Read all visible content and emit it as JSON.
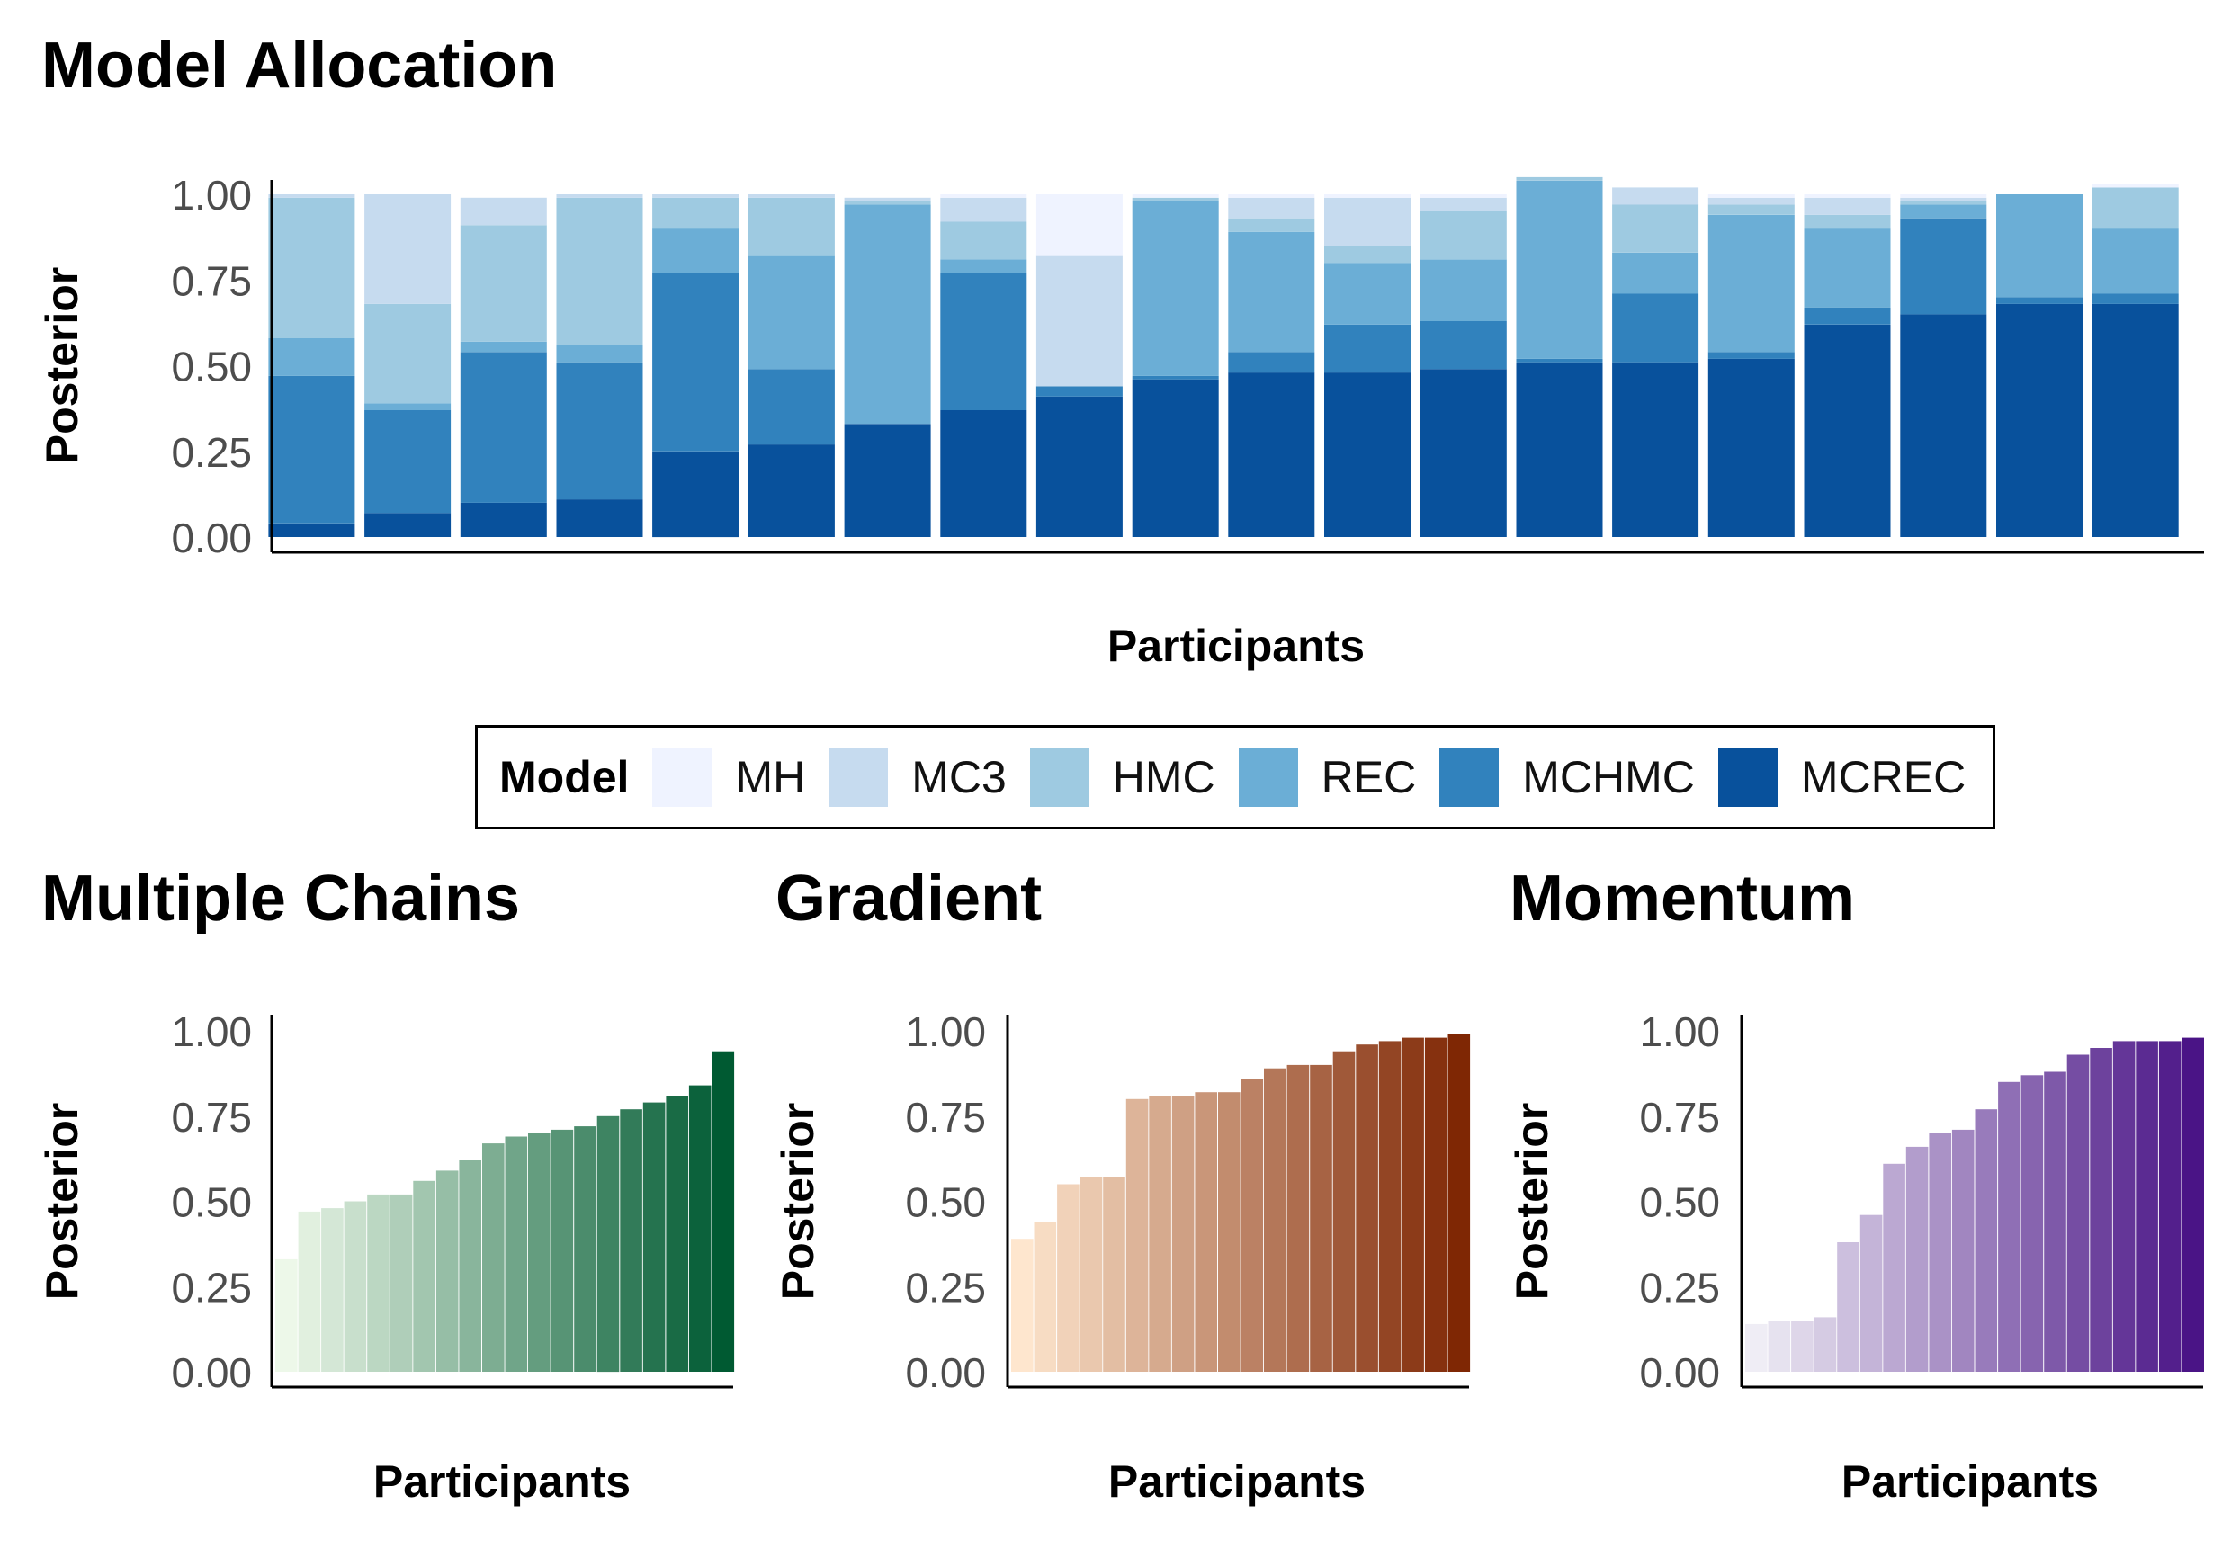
{
  "chart_data": [
    {
      "type": "bar",
      "stacked": true,
      "title": "Model Allocation",
      "xlabel": "Participants",
      "ylabel": "Posterior",
      "ylim": [
        0,
        1
      ],
      "yticks": [
        "0.00",
        "0.25",
        "0.50",
        "0.75",
        "1.00"
      ],
      "grid": false,
      "legend": {
        "title": "Model",
        "placement": "bottom",
        "entries": [
          "MH",
          "MC3",
          "HMC",
          "REC",
          "MCHMC",
          "MCREC"
        ]
      },
      "series": [
        {
          "name": "MCREC",
          "color": "#08519c",
          "values": [
            0.04,
            0.07,
            0.1,
            0.11,
            0.25,
            0.27,
            0.33,
            0.37,
            0.41,
            0.46,
            0.48,
            0.48,
            0.49,
            0.51,
            0.51,
            0.52,
            0.62,
            0.65,
            0.68,
            0.68
          ]
        },
        {
          "name": "MCHMC",
          "color": "#3182bd",
          "values": [
            0.43,
            0.3,
            0.44,
            0.4,
            0.52,
            0.22,
            0.0,
            0.4,
            0.03,
            0.01,
            0.06,
            0.14,
            0.14,
            0.01,
            0.2,
            0.02,
            0.05,
            0.28,
            0.02,
            0.03
          ]
        },
        {
          "name": "REC",
          "color": "#6baed6",
          "values": [
            0.11,
            0.02,
            0.03,
            0.05,
            0.13,
            0.33,
            0.64,
            0.04,
            0.0,
            0.51,
            0.35,
            0.18,
            0.18,
            0.52,
            0.12,
            0.4,
            0.23,
            0.04,
            0.3,
            0.19
          ]
        },
        {
          "name": "HMC",
          "color": "#9ecae1",
          "values": [
            0.41,
            0.29,
            0.34,
            0.43,
            0.09,
            0.17,
            0.01,
            0.11,
            0.0,
            0.01,
            0.04,
            0.05,
            0.14,
            0.01,
            0.14,
            0.03,
            0.04,
            0.01,
            0.0,
            0.12
          ]
        },
        {
          "name": "MC3",
          "color": "#c6dbef",
          "values": [
            0.01,
            0.32,
            0.08,
            0.01,
            0.01,
            0.01,
            0.01,
            0.07,
            0.38,
            0.0,
            0.06,
            0.14,
            0.04,
            0.0,
            0.05,
            0.02,
            0.05,
            0.01,
            0.0,
            0.0
          ]
        },
        {
          "name": "MH",
          "color": "#eff3ff",
          "values": [
            0.0,
            0.0,
            0.0,
            0.0,
            0.0,
            0.0,
            0.0,
            0.01,
            0.18,
            0.01,
            0.01,
            0.01,
            0.01,
            0.0,
            0.0,
            0.01,
            0.01,
            0.01,
            0.0,
            0.01
          ]
        }
      ]
    },
    {
      "type": "bar",
      "title": "Multiple Chains",
      "xlabel": "Participants",
      "ylabel": "Posterior",
      "ylim": [
        0,
        1
      ],
      "yticks": [
        "0.00",
        "0.25",
        "0.50",
        "0.75",
        "1.00"
      ],
      "grid": false,
      "color_low": "#edf8e9",
      "color_high": "#005a32",
      "values": [
        0.33,
        0.47,
        0.48,
        0.5,
        0.52,
        0.52,
        0.56,
        0.59,
        0.62,
        0.67,
        0.69,
        0.7,
        0.71,
        0.72,
        0.75,
        0.77,
        0.79,
        0.81,
        0.84,
        0.94
      ]
    },
    {
      "type": "bar",
      "title": "Gradient",
      "xlabel": "Participants",
      "ylabel": "Posterior",
      "ylim": [
        0,
        1
      ],
      "yticks": [
        "0.00",
        "0.25",
        "0.50",
        "0.75",
        "1.00"
      ],
      "grid": false,
      "color_low": "#fee6ce",
      "color_high": "#7f2704",
      "values": [
        0.39,
        0.44,
        0.55,
        0.57,
        0.57,
        0.8,
        0.81,
        0.81,
        0.82,
        0.82,
        0.86,
        0.89,
        0.9,
        0.9,
        0.94,
        0.96,
        0.97,
        0.98,
        0.98,
        0.99
      ]
    },
    {
      "type": "bar",
      "title": "Momentum",
      "xlabel": "Participants",
      "ylabel": "Posterior",
      "ylim": [
        0,
        1
      ],
      "yticks": [
        "0.00",
        "0.25",
        "0.50",
        "0.75",
        "1.00"
      ],
      "grid": false,
      "color_low": "#efedf5",
      "color_high": "#4a1486",
      "values": [
        0.14,
        0.15,
        0.15,
        0.16,
        0.38,
        0.46,
        0.61,
        0.66,
        0.7,
        0.71,
        0.77,
        0.85,
        0.87,
        0.88,
        0.93,
        0.95,
        0.97,
        0.97,
        0.97,
        0.98
      ]
    }
  ]
}
